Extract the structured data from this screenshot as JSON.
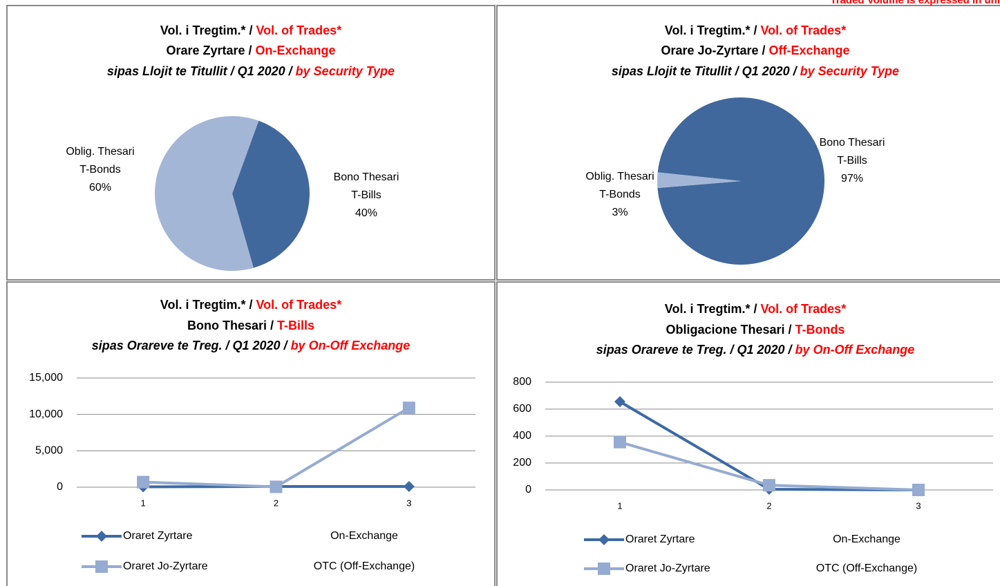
{
  "note": "Traded Volume is expressed in uni",
  "chart_data": [
    {
      "type": "pie",
      "title": [
        [
          "Vol. i Tregtim.* /",
          "Vol. of Trades*"
        ],
        [
          "Orare Zyrtare /",
          "On-Exchange"
        ],
        [
          "sipas Llojit te Titullit / Q1 2020 /",
          "by Security Type"
        ]
      ],
      "labels": [
        [
          "Bono Thesari",
          "T-Bills"
        ],
        [
          "Oblig. Thesari",
          "T-Bonds"
        ]
      ],
      "values": [
        40,
        60
      ],
      "value_labels": [
        "40%",
        "60%"
      ],
      "colors": [
        "#41689c",
        "#a4b6d6"
      ]
    },
    {
      "type": "pie",
      "title": [
        [
          "Vol. i Tregtim.* /",
          "Vol. of Trades*"
        ],
        [
          "Orare Jo-Zyrtare /",
          "Off-Exchange"
        ],
        [
          "sipas Llojit te Titullit / Q1 2020 /",
          "by Security Type"
        ]
      ],
      "labels": [
        [
          "Bono Thesari",
          "T-Bills"
        ],
        [
          "Oblig. Thesari",
          "T-Bonds"
        ]
      ],
      "values": [
        97,
        3
      ],
      "value_labels": [
        "97%",
        "3%"
      ],
      "colors": [
        "#41689c",
        "#a4b6d6"
      ]
    },
    {
      "type": "line",
      "title": [
        [
          "Vol. i Tregtim.* /",
          "Vol. of Trades*"
        ],
        [
          "Bono Thesari /",
          "T-Bills"
        ],
        [
          "sipas Orareve te Treg. / Q1 2020 /",
          "by On-Off Exchange"
        ]
      ],
      "categories": [
        "1",
        "2",
        "3"
      ],
      "series": [
        {
          "name": "Oraret Zyrtare",
          "description": "On-Exchange",
          "color": "#3d6aa5",
          "marker": "diamond",
          "values": [
            50,
            100,
            100
          ]
        },
        {
          "name": "Oraret Jo-Zyrtare",
          "description": "OTC (Off-Exchange)",
          "color": "#95abd1",
          "marker": "square",
          "values": [
            700,
            50,
            10900
          ]
        }
      ],
      "ylim": [
        0,
        15000
      ],
      "yticks": [
        0,
        {
          "value": 5000,
          "label": "5,000"
        },
        {
          "value": 10000,
          "label": "10,000"
        },
        {
          "value": 15000,
          "label": "15,000"
        }
      ],
      "grid": true
    },
    {
      "type": "line",
      "title": [
        [
          "Vol. i Tregtim.* /",
          "Vol. of Trades*"
        ],
        [
          "Obligacione Thesari /",
          "T-Bonds"
        ],
        [
          "sipas Orareve te Treg. / Q1 2020 /",
          "by On-Off Exchange"
        ]
      ],
      "categories": [
        "1",
        "2",
        "3"
      ],
      "series": [
        {
          "name": "Oraret Zyrtare",
          "description": "On-Exchange",
          "color": "#3d6aa5",
          "marker": "diamond",
          "values": [
            655,
            5,
            0
          ]
        },
        {
          "name": "Oraret Jo-Zyrtare",
          "description": "OTC (Off-Exchange)",
          "color": "#95abd1",
          "marker": "square",
          "values": [
            355,
            35,
            0
          ]
        }
      ],
      "ylim": [
        0,
        800
      ],
      "yticks": [
        0,
        200,
        400,
        600,
        800
      ],
      "grid": true
    }
  ]
}
